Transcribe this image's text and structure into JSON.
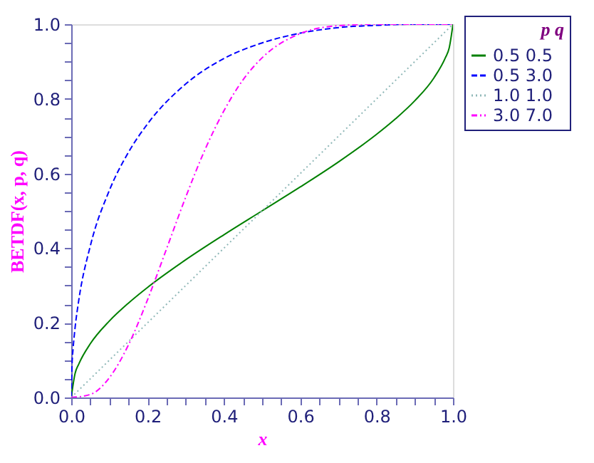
{
  "chart_data": {
    "type": "line",
    "xlabel": "x",
    "ylabel": "BETDF(x, p, q)",
    "legend_title": "p    q",
    "legend": "right",
    "xlim": [
      0,
      1
    ],
    "ylim": [
      0,
      1
    ],
    "xticks": [
      {
        "value": 0.0,
        "label": "0.0"
      },
      {
        "value": 0.05,
        "label": null
      },
      {
        "value": 0.1,
        "label": null
      },
      {
        "value": 0.15,
        "label": null
      },
      {
        "value": 0.2,
        "label": "0.2"
      },
      {
        "value": 0.25,
        "label": null
      },
      {
        "value": 0.3,
        "label": null
      },
      {
        "value": 0.35,
        "label": null
      },
      {
        "value": 0.4,
        "label": "0.4"
      },
      {
        "value": 0.45,
        "label": null
      },
      {
        "value": 0.5,
        "label": null
      },
      {
        "value": 0.55,
        "label": null
      },
      {
        "value": 0.6,
        "label": "0.6"
      },
      {
        "value": 0.65,
        "label": null
      },
      {
        "value": 0.7,
        "label": null
      },
      {
        "value": 0.75,
        "label": null
      },
      {
        "value": 0.8,
        "label": "0.8"
      },
      {
        "value": 0.85,
        "label": null
      },
      {
        "value": 0.9,
        "label": null
      },
      {
        "value": 0.95,
        "label": null
      },
      {
        "value": 1.0,
        "label": "1.0"
      }
    ],
    "yticks": [
      {
        "value": 0.0,
        "label": "0.0"
      },
      {
        "value": 0.05,
        "label": null
      },
      {
        "value": 0.1,
        "label": null
      },
      {
        "value": 0.15,
        "label": null
      },
      {
        "value": 0.2,
        "label": "0.2"
      },
      {
        "value": 0.25,
        "label": null
      },
      {
        "value": 0.3,
        "label": null
      },
      {
        "value": 0.35,
        "label": null
      },
      {
        "value": 0.4,
        "label": "0.4"
      },
      {
        "value": 0.45,
        "label": null
      },
      {
        "value": 0.5,
        "label": null
      },
      {
        "value": 0.55,
        "label": null
      },
      {
        "value": 0.6,
        "label": "0.6"
      },
      {
        "value": 0.65,
        "label": null
      },
      {
        "value": 0.7,
        "label": null
      },
      {
        "value": 0.75,
        "label": null
      },
      {
        "value": 0.8,
        "label": "0.8"
      },
      {
        "value": 0.85,
        "label": null
      },
      {
        "value": 0.9,
        "label": null
      },
      {
        "value": 0.95,
        "label": null
      },
      {
        "value": 1.0,
        "label": "1.0"
      }
    ],
    "grid": false,
    "series": [
      {
        "name": "0.5   0.5",
        "color": "#008000",
        "line_style": "solid",
        "x": [
          0,
          0.01,
          0.02,
          0.05,
          0.1,
          0.15,
          0.2,
          0.3,
          0.4,
          0.5,
          0.6,
          0.7,
          0.8,
          0.85,
          0.9,
          0.95,
          0.98,
          0.99,
          1
        ],
        "values": [
          0,
          0.064,
          0.09,
          0.144,
          0.205,
          0.253,
          0.295,
          0.369,
          0.436,
          0.5,
          0.564,
          0.631,
          0.705,
          0.747,
          0.795,
          0.856,
          0.91,
          0.936,
          1
        ]
      },
      {
        "name": "0.5   3.0",
        "color": "#0000ff",
        "line_style": "dashed",
        "x": [
          0,
          0.002,
          0.005,
          0.01,
          0.02,
          0.05,
          0.1,
          0.15,
          0.2,
          0.3,
          0.4,
          0.5,
          0.6,
          0.7,
          0.8,
          0.9,
          1
        ],
        "values": [
          0,
          0.084,
          0.132,
          0.186,
          0.262,
          0.406,
          0.555,
          0.657,
          0.733,
          0.84,
          0.908,
          0.95,
          0.976,
          0.991,
          0.997,
          1,
          1
        ]
      },
      {
        "name": "1.0   1.0",
        "color": "#90b8b8",
        "line_style": "dotted",
        "x": [
          0,
          1
        ],
        "values": [
          0,
          1
        ]
      },
      {
        "name": "3.0   7.0",
        "color": "#ff00ff",
        "line_style": "dashdot",
        "x": [
          0,
          0.05,
          0.1,
          0.15,
          0.2,
          0.25,
          0.3,
          0.35,
          0.4,
          0.45,
          0.5,
          0.6,
          0.7,
          0.8,
          1
        ],
        "values": [
          0,
          0.008,
          0.053,
          0.141,
          0.262,
          0.399,
          0.537,
          0.663,
          0.768,
          0.851,
          0.91,
          0.975,
          0.996,
          1,
          1
        ]
      }
    ]
  }
}
